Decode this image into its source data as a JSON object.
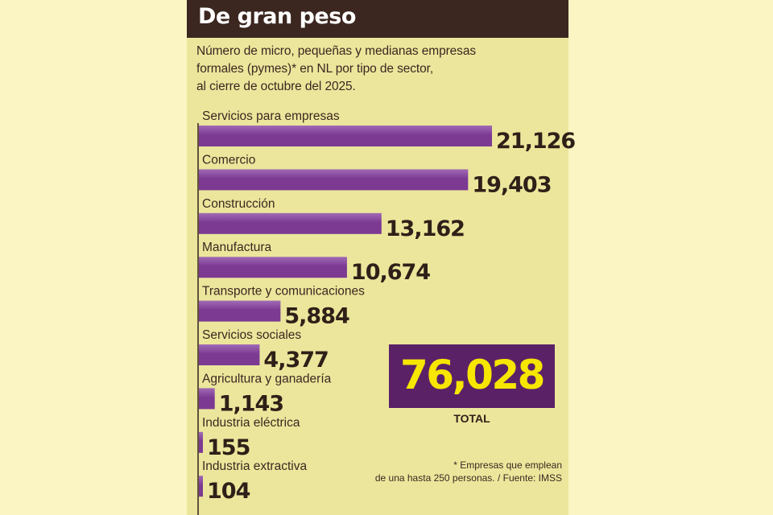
{
  "header": {
    "title": "De gran peso"
  },
  "subtitle": {
    "line1": "Número de micro, pequeñas y medianas empresas",
    "line2": "formales (pymes)*  en NL por tipo de sector,",
    "line3": "al cierre de octubre del 2025."
  },
  "chart_data": {
    "type": "bar",
    "orientation": "horizontal",
    "title": "De gran peso",
    "categories": [
      "Servicios para empresas",
      "Comercio",
      "Construcción",
      "Manufactura",
      "Transporte y comunicaciones",
      "Servicios sociales",
      "Agricultura y ganadería",
      "Industria eléctrica",
      "Industria extractiva"
    ],
    "values": [
      21126,
      19403,
      13162,
      10674,
      5884,
      4377,
      1143,
      155,
      104
    ],
    "value_labels": [
      "21,126",
      "19,403",
      "13,162",
      "10,674",
      "5,884",
      "4,377",
      "1,143",
      "155",
      "104"
    ],
    "xlim": [
      0,
      21126
    ],
    "bar_color": "#7c3a93",
    "bar_highlight_color": "#a06bb5"
  },
  "total": {
    "value": "76,028",
    "label": "TOTAL",
    "box_color": "#5b2167",
    "text_color": "#f6e600"
  },
  "footnote": {
    "line1": "* Empresas que emplean",
    "line2": "de una hasta 250 personas. / Fuente: IMSS"
  }
}
